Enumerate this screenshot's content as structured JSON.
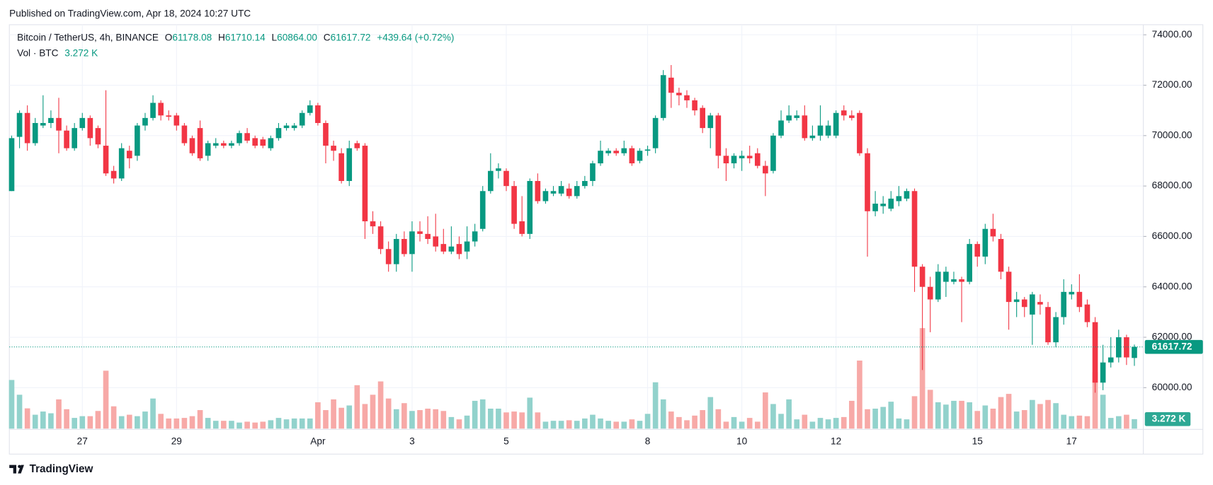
{
  "header": {
    "published": "Published on TradingView.com, Apr 18, 2024 10:27 UTC"
  },
  "footer": {
    "brand": "TradingView"
  },
  "chart_data": {
    "type": "candlestick",
    "legend": {
      "symbol": "Bitcoin / TetherUS, 4h, BINANCE",
      "ohlc": [
        {
          "key": "O",
          "value": "61178.08"
        },
        {
          "key": "H",
          "value": "61710.14"
        },
        {
          "key": "L",
          "value": "60864.00"
        },
        {
          "key": "C",
          "value": "61617.72"
        }
      ],
      "change": "+439.64 (+0.72%)",
      "volume_name": "Vol · BTC"
    },
    "up_color": "#089981",
    "down_color": "#f23645",
    "volume_up_color": "#92d2cc",
    "volume_down_color": "#f7a9a7",
    "grid": true,
    "ylim": [
      58375,
      74400
    ],
    "yticks": [
      {
        "value": 60000,
        "label": "60000.00"
      },
      {
        "value": 62000,
        "label": "62000.00"
      },
      {
        "value": 64000,
        "label": "64000.00"
      },
      {
        "value": 66000,
        "label": "66000.00"
      },
      {
        "value": 68000,
        "label": "68000.00"
      },
      {
        "value": 70000,
        "label": "70000.00"
      },
      {
        "value": 72000,
        "label": "72000.00"
      },
      {
        "value": 74000,
        "label": "74000.00"
      }
    ],
    "volume_lim": [
      0,
      40
    ],
    "last_price_label": "61617.72",
    "last_volume_label": "3.272 K",
    "categories": [
      null,
      null,
      null,
      null,
      null,
      null,
      null,
      null,
      null,
      "27",
      null,
      null,
      null,
      null,
      null,
      null,
      null,
      null,
      null,
      null,
      null,
      "29",
      null,
      null,
      null,
      null,
      null,
      null,
      null,
      null,
      null,
      null,
      null,
      null,
      null,
      null,
      null,
      null,
      null,
      "Apr",
      null,
      null,
      null,
      null,
      null,
      null,
      null,
      null,
      null,
      null,
      null,
      "3",
      null,
      null,
      null,
      null,
      null,
      null,
      null,
      null,
      null,
      null,
      null,
      "5",
      null,
      null,
      null,
      null,
      null,
      null,
      null,
      null,
      null,
      null,
      null,
      null,
      null,
      null,
      null,
      null,
      null,
      "8",
      null,
      null,
      null,
      null,
      null,
      null,
      null,
      null,
      null,
      null,
      null,
      "10",
      null,
      null,
      null,
      null,
      null,
      null,
      null,
      null,
      null,
      null,
      null,
      "12",
      null,
      null,
      null,
      null,
      null,
      null,
      null,
      null,
      null,
      null,
      null,
      null,
      null,
      null,
      null,
      null,
      null,
      "15",
      null,
      null,
      null,
      null,
      null,
      null,
      null,
      null,
      null,
      null,
      null,
      "17",
      null,
      null,
      null,
      null,
      null,
      null,
      null,
      null
    ],
    "ohlc": [
      [
        67800,
        70000,
        67800,
        69900
      ],
      [
        69950,
        71000,
        69500,
        70900
      ],
      [
        70900,
        71200,
        69400,
        69700
      ],
      [
        69700,
        70700,
        69600,
        70500
      ],
      [
        70400,
        71600,
        70300,
        70500
      ],
      [
        70500,
        71000,
        70300,
        70700
      ],
      [
        70700,
        71500,
        69300,
        70200
      ],
      [
        70200,
        70400,
        69400,
        69500
      ],
      [
        69500,
        70500,
        69400,
        70300
      ],
      [
        70300,
        70900,
        70200,
        70700
      ],
      [
        70700,
        70800,
        69600,
        69900
      ],
      [
        70300,
        70400,
        69500,
        69650
      ],
      [
        69600,
        71800,
        68400,
        68500
      ],
      [
        68600,
        68800,
        68100,
        68300
      ],
      [
        68300,
        69700,
        68200,
        69500
      ],
      [
        69400,
        69600,
        68700,
        69100
      ],
      [
        69200,
        70500,
        69000,
        70400
      ],
      [
        70400,
        70900,
        70200,
        70700
      ],
      [
        70700,
        71600,
        70600,
        71300
      ],
      [
        71300,
        71400,
        70600,
        70800
      ],
      [
        70800,
        71000,
        70600,
        70750
      ],
      [
        70800,
        70900,
        70200,
        70400
      ],
      [
        70400,
        70500,
        69600,
        69700
      ],
      [
        69900,
        70000,
        69200,
        69300
      ],
      [
        70300,
        70600,
        69000,
        69100
      ],
      [
        69200,
        69800,
        69000,
        69700
      ],
      [
        69600,
        69900,
        69500,
        69700
      ],
      [
        69700,
        69800,
        69500,
        69600
      ],
      [
        69600,
        69800,
        69500,
        69700
      ],
      [
        69700,
        70200,
        69600,
        70100
      ],
      [
        70100,
        70300,
        69700,
        69800
      ],
      [
        69900,
        70000,
        69500,
        69600
      ],
      [
        69850,
        69950,
        69500,
        69600
      ],
      [
        69500,
        70000,
        69400,
        69900
      ],
      [
        69900,
        70500,
        69800,
        70300
      ],
      [
        70300,
        70500,
        70200,
        70400
      ],
      [
        70300,
        70500,
        70200,
        70400
      ],
      [
        70400,
        71000,
        70300,
        70900
      ],
      [
        70900,
        71400,
        70800,
        71200
      ],
      [
        71200,
        71300,
        70400,
        70500
      ],
      [
        70500,
        70600,
        68900,
        69600
      ],
      [
        69600,
        69800,
        69000,
        69400
      ],
      [
        69300,
        69500,
        68100,
        68200
      ],
      [
        68200,
        69800,
        68000,
        69500
      ],
      [
        69700,
        69800,
        69400,
        69500
      ],
      [
        69600,
        69700,
        65900,
        66600
      ],
      [
        66600,
        67000,
        66100,
        66400
      ],
      [
        66400,
        66600,
        65300,
        65500
      ],
      [
        65500,
        65800,
        64600,
        64900
      ],
      [
        64900,
        66100,
        64600,
        65900
      ],
      [
        65900,
        66200,
        65200,
        65300
      ],
      [
        65300,
        66600,
        64600,
        66200
      ],
      [
        66200,
        66600,
        65800,
        66100
      ],
      [
        66100,
        66800,
        65700,
        65900
      ],
      [
        66000,
        66900,
        65400,
        65600
      ],
      [
        65700,
        66300,
        65300,
        65400
      ],
      [
        65400,
        66400,
        65300,
        65600
      ],
      [
        65700,
        66000,
        65100,
        65300
      ],
      [
        65400,
        66400,
        65100,
        65800
      ],
      [
        65800,
        66500,
        65600,
        66200
      ],
      [
        66300,
        68000,
        66200,
        67800
      ],
      [
        67800,
        69300,
        67700,
        68600
      ],
      [
        68600,
        68900,
        68300,
        68700
      ],
      [
        68600,
        68700,
        67800,
        68000
      ],
      [
        68000,
        68200,
        66300,
        66500
      ],
      [
        66600,
        67600,
        66000,
        66100
      ],
      [
        66100,
        68300,
        65900,
        68200
      ],
      [
        68200,
        68500,
        67300,
        67400
      ],
      [
        67400,
        67900,
        67300,
        67800
      ],
      [
        67700,
        68000,
        67600,
        67800
      ],
      [
        67700,
        68200,
        67600,
        68000
      ],
      [
        67900,
        68100,
        67500,
        67600
      ],
      [
        67600,
        68200,
        67500,
        68000
      ],
      [
        68000,
        68400,
        67900,
        68200
      ],
      [
        68200,
        69000,
        68000,
        68900
      ],
      [
        68900,
        69800,
        68800,
        69400
      ],
      [
        69300,
        69500,
        69200,
        69400
      ],
      [
        69400,
        69500,
        69200,
        69300
      ],
      [
        69300,
        69800,
        69200,
        69500
      ],
      [
        69500,
        69600,
        68800,
        68900
      ],
      [
        69000,
        69500,
        68900,
        69400
      ],
      [
        69400,
        69600,
        69200,
        69450
      ],
      [
        69500,
        70800,
        69300,
        70700
      ],
      [
        70700,
        72600,
        70600,
        72400
      ],
      [
        72300,
        72800,
        71100,
        71700
      ],
      [
        71700,
        71900,
        71200,
        71600
      ],
      [
        71600,
        71800,
        71100,
        71400
      ],
      [
        71400,
        71500,
        70800,
        71000
      ],
      [
        71100,
        71200,
        70100,
        70300
      ],
      [
        70300,
        70900,
        69500,
        70800
      ],
      [
        70800,
        70900,
        68700,
        69200
      ],
      [
        69200,
        69500,
        68200,
        68900
      ],
      [
        68900,
        69300,
        68700,
        69200
      ],
      [
        69100,
        69400,
        68600,
        69200
      ],
      [
        69200,
        69600,
        68900,
        69100
      ],
      [
        69300,
        69500,
        68700,
        68800
      ],
      [
        68800,
        69000,
        67600,
        68500
      ],
      [
        68600,
        70100,
        68500,
        70000
      ],
      [
        70000,
        71000,
        69900,
        70600
      ],
      [
        70600,
        71200,
        70500,
        70800
      ],
      [
        70700,
        71000,
        70600,
        70800
      ],
      [
        70800,
        71200,
        69800,
        69900
      ],
      [
        69900,
        70400,
        69800,
        70000
      ],
      [
        70000,
        71200,
        69800,
        70400
      ],
      [
        70000,
        70600,
        69900,
        70400
      ],
      [
        70000,
        71000,
        69900,
        70900
      ],
      [
        71000,
        71200,
        70600,
        70800
      ],
      [
        70800,
        71000,
        70600,
        70700
      ],
      [
        70900,
        71000,
        69200,
        69300
      ],
      [
        69300,
        69500,
        65200,
        67000
      ],
      [
        67000,
        67800,
        66800,
        67300
      ],
      [
        67200,
        67600,
        66900,
        67300
      ],
      [
        67100,
        67800,
        67000,
        67500
      ],
      [
        67400,
        68000,
        67200,
        67600
      ],
      [
        67500,
        67900,
        67400,
        67800
      ],
      [
        67800,
        67900,
        63800,
        64800
      ],
      [
        64800,
        64900,
        60700,
        64000
      ],
      [
        64000,
        64400,
        62200,
        63500
      ],
      [
        63500,
        64900,
        63400,
        64600
      ],
      [
        64200,
        64800,
        63600,
        64600
      ],
      [
        64200,
        64600,
        64100,
        64300
      ],
      [
        64300,
        64400,
        62600,
        64200
      ],
      [
        64200,
        65900,
        64100,
        65700
      ],
      [
        65700,
        65800,
        64800,
        65200
      ],
      [
        65200,
        66500,
        64900,
        66300
      ],
      [
        66300,
        66900,
        65800,
        66000
      ],
      [
        65900,
        66100,
        64300,
        64600
      ],
      [
        64600,
        64800,
        62300,
        63400
      ],
      [
        63400,
        63800,
        62800,
        63500
      ],
      [
        63500,
        63600,
        62800,
        63200
      ],
      [
        62900,
        63800,
        61700,
        63700
      ],
      [
        63400,
        63700,
        62900,
        63300
      ],
      [
        63200,
        63400,
        61700,
        61800
      ],
      [
        61800,
        63000,
        61600,
        62800
      ],
      [
        62800,
        64300,
        62500,
        63800
      ],
      [
        63700,
        64100,
        63500,
        63800
      ],
      [
        63800,
        64500,
        63000,
        63200
      ],
      [
        63300,
        63500,
        62400,
        62600
      ],
      [
        62600,
        62800,
        59800,
        60200
      ],
      [
        60200,
        61700,
        59900,
        61000
      ],
      [
        61000,
        62000,
        60800,
        61200
      ],
      [
        61200,
        62300,
        61000,
        62000
      ],
      [
        62000,
        62100,
        60900,
        61200
      ],
      [
        61178.08,
        61710.14,
        60864,
        61617.72
      ]
    ],
    "volume": [
      16.8,
      11.7,
      7,
      4.8,
      5.9,
      5.3,
      10.1,
      6.7,
      3.7,
      4.3,
      4.3,
      6.1,
      20,
      7.7,
      4.3,
      4.8,
      4.3,
      5.9,
      10.4,
      5.1,
      3.5,
      3.5,
      3.7,
      4.3,
      6.4,
      3.7,
      2.7,
      2.7,
      2.7,
      2.1,
      2.4,
      2.1,
      2.4,
      2.9,
      3.7,
      3.2,
      3.5,
      3.5,
      3.5,
      9.1,
      6.4,
      10.1,
      7.2,
      8,
      15,
      8.5,
      11.7,
      16.3,
      10.4,
      6.7,
      8.8,
      6.1,
      6.4,
      6.9,
      6.7,
      6.1,
      4,
      3.2,
      4.5,
      9.6,
      10.1,
      6.9,
      6.9,
      5.6,
      5.9,
      5.6,
      10.7,
      5.6,
      2.4,
      2.7,
      2.7,
      2.9,
      2.7,
      3.5,
      4.8,
      3.5,
      2.7,
      2.4,
      2.4,
      3.2,
      2.7,
      5.1,
      16,
      10.1,
      5.9,
      4,
      2.9,
      4.5,
      6.4,
      10.9,
      6.7,
      2.4,
      4,
      2.4,
      3.7,
      2.4,
      12.5,
      8.5,
      5.1,
      10.1,
      3.2,
      4.8,
      2.4,
      3.7,
      3.2,
      3.7,
      4,
      9.6,
      23.5,
      6.7,
      6.9,
      7.5,
      9.3,
      3.5,
      3.2,
      11.2,
      34.7,
      13.4,
      9.1,
      8.3,
      9.6,
      9.6,
      9.1,
      6.1,
      8,
      6.9,
      10.9,
      12,
      5.9,
      6.4,
      9.9,
      8.5,
      9.9,
      8.8,
      4.8,
      4.3,
      4.5,
      4.3,
      19.5,
      11.7,
      3.7,
      4.3,
      4.8,
      3.272
    ]
  }
}
